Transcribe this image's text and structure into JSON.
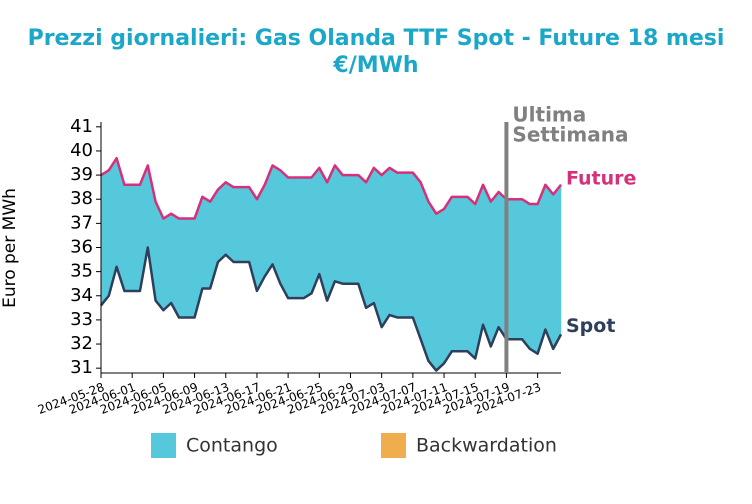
{
  "chart_data": {
    "type": "line",
    "title": [
      "Prezzi giornalieri: Gas Olanda TTF Spot - Future 18 mesi",
      "€/MWh"
    ],
    "ylabel": "Euro per MWh",
    "x": [
      "2024-05-28",
      "2024-05-29",
      "2024-05-30",
      "2024-05-31",
      "2024-06-01",
      "2024-06-02",
      "2024-06-03",
      "2024-06-04",
      "2024-06-05",
      "2024-06-06",
      "2024-06-07",
      "2024-06-08",
      "2024-06-09",
      "2024-06-10",
      "2024-06-11",
      "2024-06-12",
      "2024-06-13",
      "2024-06-14",
      "2024-06-15",
      "2024-06-16",
      "2024-06-17",
      "2024-06-18",
      "2024-06-19",
      "2024-06-20",
      "2024-06-21",
      "2024-06-22",
      "2024-06-23",
      "2024-06-24",
      "2024-06-25",
      "2024-06-26",
      "2024-06-27",
      "2024-06-28",
      "2024-06-29",
      "2024-06-30",
      "2024-07-01",
      "2024-07-02",
      "2024-07-03",
      "2024-07-04",
      "2024-07-05",
      "2024-07-06",
      "2024-07-07",
      "2024-07-08",
      "2024-07-09",
      "2024-07-10",
      "2024-07-11",
      "2024-07-12",
      "2024-07-13",
      "2024-07-14",
      "2024-07-15",
      "2024-07-16",
      "2024-07-17",
      "2024-07-18",
      "2024-07-19",
      "2024-07-20",
      "2024-07-21",
      "2024-07-22",
      "2024-07-23",
      "2024-07-24",
      "2024-07-25",
      "2024-07-26"
    ],
    "series": [
      {
        "name": "Future",
        "color": "#d6307a",
        "values": [
          39.0,
          39.2,
          39.7,
          38.6,
          38.6,
          38.6,
          39.4,
          37.9,
          37.2,
          37.4,
          37.2,
          37.2,
          37.2,
          38.1,
          37.9,
          38.4,
          38.7,
          38.5,
          38.5,
          38.5,
          38.0,
          38.6,
          39.4,
          39.2,
          38.9,
          38.9,
          38.9,
          38.9,
          39.3,
          38.7,
          39.4,
          39.0,
          39.0,
          39.0,
          38.7,
          39.3,
          39.0,
          39.3,
          39.1,
          39.1,
          39.1,
          38.7,
          37.9,
          37.4,
          37.6,
          38.1,
          38.1,
          38.1,
          37.8,
          38.6,
          37.9,
          38.3,
          38.0,
          38.0,
          38.0,
          37.8,
          37.8,
          38.6,
          38.2,
          38.6
        ]
      },
      {
        "name": "Spot",
        "color": "#2e3f5c",
        "values": [
          33.6,
          34.0,
          35.2,
          34.2,
          34.2,
          34.2,
          36.0,
          33.8,
          33.4,
          33.7,
          33.1,
          33.1,
          33.1,
          34.3,
          34.3,
          35.4,
          35.7,
          35.4,
          35.4,
          35.4,
          34.2,
          34.8,
          35.3,
          34.5,
          33.9,
          33.9,
          33.9,
          34.1,
          34.9,
          33.8,
          34.6,
          34.5,
          34.5,
          34.5,
          33.5,
          33.7,
          32.7,
          33.2,
          33.1,
          33.1,
          33.1,
          32.2,
          31.3,
          30.9,
          31.2,
          31.7,
          31.7,
          31.7,
          31.4,
          32.8,
          31.9,
          32.7,
          32.2,
          32.2,
          32.2,
          31.8,
          31.6,
          32.6,
          31.8,
          32.4
        ]
      }
    ],
    "fill_legend": [
      {
        "name": "Contango",
        "color": "#56c8dc"
      },
      {
        "name": "Backwardation",
        "color": "#f0ad4e"
      }
    ],
    "annotation": {
      "text": [
        "Ultima",
        "Settimana"
      ],
      "x": "2024-07-19",
      "color": "#808080"
    },
    "xlim": [
      "2024-05-28",
      "2024-07-26"
    ],
    "xticks": [
      "2024-05-28",
      "2024-06-01",
      "2024-06-05",
      "2024-06-09",
      "2024-06-13",
      "2024-06-17",
      "2024-06-21",
      "2024-06-25",
      "2024-06-29",
      "2024-07-03",
      "2024-07-07",
      "2024-07-11",
      "2024-07-15",
      "2024-07-19",
      "2024-07-23"
    ],
    "ylim": [
      30.8,
      41.2
    ],
    "yticks": [
      31,
      32,
      33,
      34,
      35,
      36,
      37,
      38,
      39,
      40,
      41
    ],
    "grid": false
  }
}
